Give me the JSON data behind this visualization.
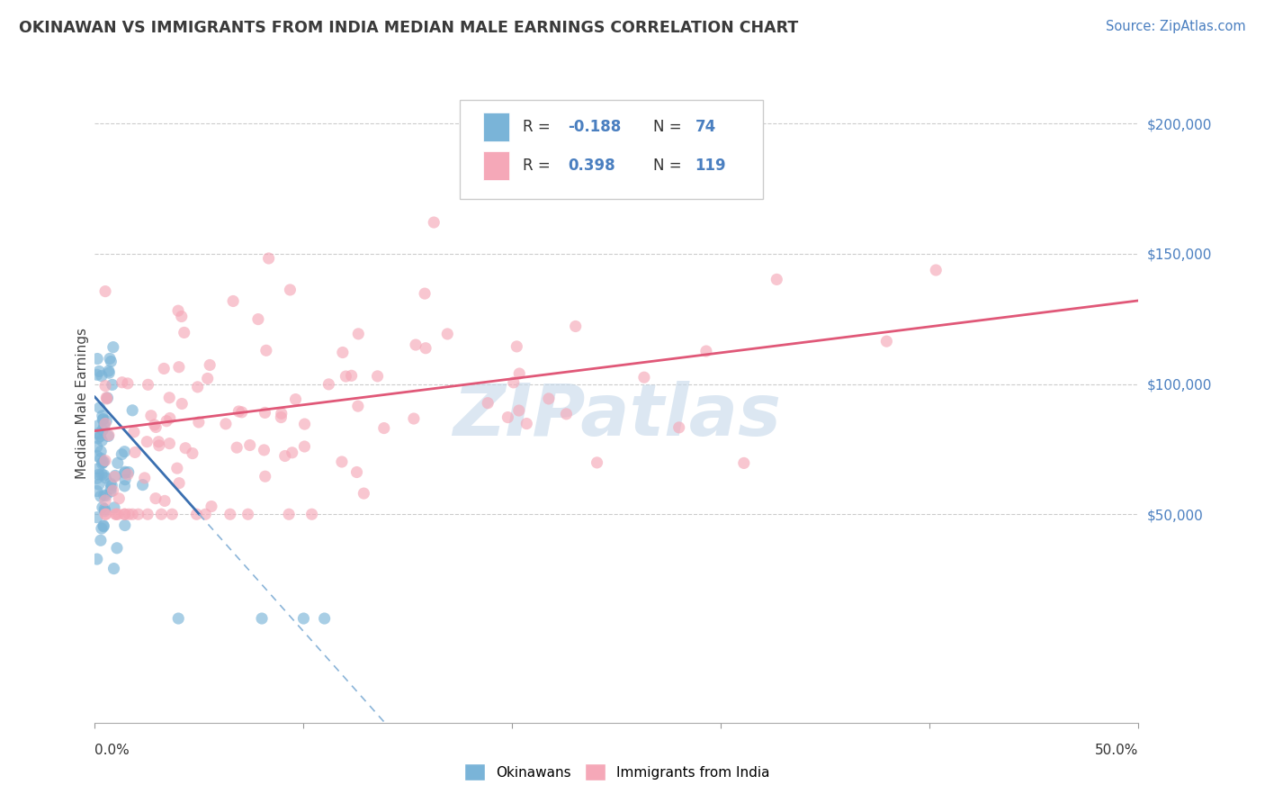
{
  "title": "OKINAWAN VS IMMIGRANTS FROM INDIA MEDIAN MALE EARNINGS CORRELATION CHART",
  "source": "Source: ZipAtlas.com",
  "ylabel": "Median Male Earnings",
  "ylabel_right_vals": [
    200000,
    150000,
    100000,
    50000
  ],
  "xmin": 0.0,
  "xmax": 0.5,
  "ymin": -30000,
  "ymax": 215000,
  "legend_entries": [
    {
      "label": "Okinawans",
      "R": -0.188,
      "N": 74,
      "color": "#a8c4e0"
    },
    {
      "label": "Immigrants from India",
      "R": 0.398,
      "N": 119,
      "color": "#f5a8b8"
    }
  ],
  "watermark": "ZIPatlas",
  "watermark_color": "#c5d8ea",
  "background_color": "#ffffff",
  "grid_color": "#cccccc",
  "title_color": "#3a3a3a",
  "source_color": "#4a7fc0",
  "blue_dot_color": "#7ab4d8",
  "pink_dot_color": "#f5a8b8",
  "blue_line_color_solid": "#3a6fb0",
  "blue_line_color_dash": "#8ab4d8",
  "pink_line_color": "#e05878",
  "legend_R_color": "#333333",
  "legend_N_color": "#4a7fc0"
}
